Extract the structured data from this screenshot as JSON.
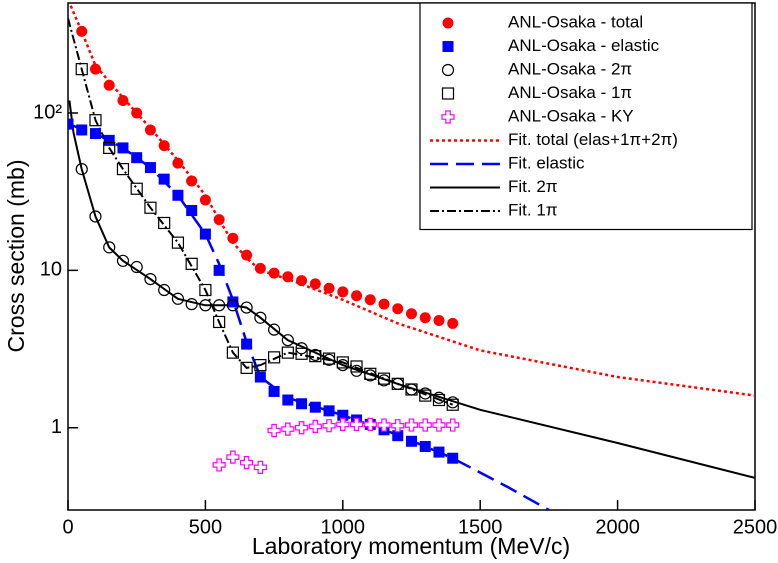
{
  "chart_data": {
    "type": "scatter",
    "x_label": "Laboratory momentum (MeV/c)",
    "y_label": "Cross section (mb)",
    "log_y": true,
    "legend": "upper right",
    "xlim": [
      0,
      2500
    ],
    "xticks": [
      0,
      500,
      1000,
      1500,
      2000,
      2500
    ],
    "ylim": [
      0.3,
      500
    ],
    "yticks": [
      1,
      10,
      {
        "value": 100,
        "label": "10²"
      }
    ],
    "series": [
      {
        "name": "ANL-Osaka - total",
        "color": "#ff0000",
        "marker": "filled-circle",
        "x": [
          50,
          100,
          150,
          200,
          250,
          300,
          350,
          400,
          450,
          500,
          550,
          600,
          650,
          700,
          750,
          800,
          850,
          900,
          950,
          1000,
          1050,
          1100,
          1150,
          1200,
          1250,
          1300,
          1350,
          1400
        ],
        "values": [
          330,
          190,
          150,
          120,
          100,
          78,
          62,
          48,
          37,
          28,
          21,
          16,
          12.5,
          10.3,
          9.6,
          9.1,
          8.6,
          8.2,
          7.7,
          7.3,
          6.9,
          6.5,
          6.1,
          5.7,
          5.3,
          5.0,
          4.8,
          4.6
        ]
      },
      {
        "name": "ANL-Osaka - elastic",
        "color": "#0000ff",
        "marker": "filled-square",
        "x": [
          0,
          50,
          100,
          150,
          200,
          250,
          300,
          350,
          400,
          450,
          500,
          550,
          600,
          650,
          700,
          750,
          800,
          850,
          900,
          950,
          1000,
          1050,
          1100,
          1150,
          1200,
          1250,
          1300,
          1350,
          1400
        ],
        "values": [
          85,
          78,
          74,
          67,
          60,
          52,
          45,
          38,
          30,
          24,
          17,
          10,
          6.3,
          3.4,
          2.1,
          1.7,
          1.5,
          1.42,
          1.35,
          1.28,
          1.2,
          1.12,
          1.05,
          0.97,
          0.89,
          0.82,
          0.76,
          0.7,
          0.64
        ]
      },
      {
        "name": "ANL-Osaka - 2π",
        "color": "#000000",
        "marker": "open-circle",
        "x": [
          50,
          100,
          150,
          200,
          250,
          300,
          350,
          400,
          450,
          500,
          550,
          600,
          650,
          700,
          750,
          800,
          850,
          900,
          950,
          1000,
          1050,
          1100,
          1150,
          1200,
          1250,
          1300,
          1350,
          1400
        ],
        "values": [
          44,
          22,
          14,
          11.5,
          10.5,
          8.8,
          7.5,
          6.6,
          6.1,
          6.0,
          6.0,
          6.0,
          5.8,
          5.0,
          4.2,
          3.6,
          3.2,
          2.9,
          2.7,
          2.5,
          2.3,
          2.15,
          2.0,
          1.9,
          1.75,
          1.65,
          1.55,
          1.45
        ]
      },
      {
        "name": "ANL-Osaka - 1π",
        "color": "#000000",
        "marker": "open-square",
        "x": [
          50,
          100,
          150,
          200,
          250,
          300,
          350,
          400,
          450,
          500,
          550,
          600,
          650,
          700,
          750,
          800,
          850,
          900,
          950,
          1000,
          1050,
          1100,
          1150,
          1200,
          1250,
          1300,
          1350,
          1400
        ],
        "values": [
          190,
          90,
          60,
          44,
          33,
          25,
          20,
          15,
          11,
          7.5,
          4.7,
          3.0,
          2.4,
          2.5,
          2.8,
          3.0,
          2.95,
          2.85,
          2.75,
          2.6,
          2.45,
          2.2,
          2.05,
          1.9,
          1.75,
          1.6,
          1.5,
          1.4
        ]
      },
      {
        "name": "ANL-Osaka - KY",
        "color": "#ff00ff",
        "marker": "open-plus",
        "x": [
          550,
          600,
          650,
          700,
          750,
          800,
          850,
          900,
          950,
          1000,
          1050,
          1100,
          1150,
          1200,
          1250,
          1300,
          1350,
          1400
        ],
        "values": [
          0.58,
          0.65,
          0.6,
          0.56,
          0.96,
          0.98,
          1.0,
          1.02,
          1.03,
          1.05,
          1.05,
          1.05,
          1.04,
          1.03,
          1.04,
          1.04,
          1.04,
          1.04
        ]
      },
      {
        "name": "Fit. total (elas+1π+2π)",
        "color": "#ff0000",
        "line": "dotted",
        "x": [
          10,
          50,
          100,
          200,
          300,
          400,
          500,
          550,
          600,
          650,
          700,
          800,
          1000,
          1200,
          1500,
          2000,
          2500
        ],
        "values": [
          480,
          330,
          200,
          125,
          80,
          50,
          30,
          21,
          15,
          12,
          10,
          8.8,
          6.5,
          4.6,
          3.1,
          2.1,
          1.6
        ]
      },
      {
        "name": "Fit. elastic",
        "color": "#0000ff",
        "line": "dashed",
        "x": [
          0,
          100,
          200,
          300,
          400,
          500,
          550,
          600,
          650,
          700,
          800,
          1000,
          1200,
          1400,
          1600,
          1750
        ],
        "values": [
          85,
          74,
          60,
          45,
          30,
          17,
          11,
          6.5,
          3.5,
          2.1,
          1.55,
          1.2,
          0.9,
          0.64,
          0.42,
          0.3
        ]
      },
      {
        "name": "Fit. 2π",
        "color": "#000000",
        "line": "solid",
        "x": [
          5,
          20,
          50,
          100,
          150,
          200,
          300,
          400,
          500,
          600,
          650,
          700,
          800,
          1000,
          1200,
          1500,
          2000,
          2500
        ],
        "values": [
          120,
          75,
          44,
          22,
          14,
          11.5,
          8.8,
          6.6,
          6.0,
          6.0,
          5.8,
          5.0,
          3.6,
          2.5,
          1.9,
          1.3,
          0.8,
          0.48
        ]
      },
      {
        "name": "Fit. 1π",
        "color": "#000000",
        "line": "dashdot",
        "x": [
          0,
          50,
          100,
          150,
          200,
          300,
          400,
          500,
          550,
          600,
          650,
          700,
          800,
          1000,
          1200,
          1400
        ],
        "values": [
          400,
          190,
          90,
          60,
          44,
          25,
          15,
          7.5,
          4.7,
          3.0,
          2.4,
          2.5,
          3.0,
          2.6,
          1.9,
          1.4
        ]
      }
    ]
  }
}
